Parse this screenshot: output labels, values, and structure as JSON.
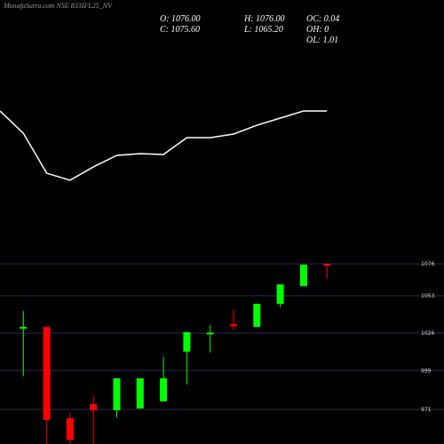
{
  "chart_data": [
    {
      "type": "line",
      "ylim": [
        0,
        100
      ],
      "color": "#ffffff",
      "values": [
        79.2,
        58.3,
        20.8,
        14.2,
        26.7,
        37.5,
        39.2,
        38.3,
        54.2,
        54.2,
        57.5,
        65.8,
        72.5,
        79.2,
        79.2
      ]
    },
    {
      "type": "candlestick",
      "title": "MunafaSutra.com NSE 833IFL25_NV",
      "annotations": [
        "O: 1076.00",
        "H: 1076.00",
        "OC: 0.04",
        "C: 1075.60",
        "L: 1065.20",
        "OH: 0",
        "OL: 1.01"
      ],
      "up_color": "#00ff00",
      "down_color": "#ff0000",
      "grid": true,
      "ylim": [
        946,
        1087
      ],
      "yticks": [
        1076,
        1053,
        1026,
        999,
        971
      ],
      "open": [
        1030.5,
        1030.5,
        964.6,
        974.8,
        970.3,
        971.6,
        976.8,
        1012.7,
        1026,
        1032.4,
        1030.5,
        1047.2,
        1059.9,
        1076
      ],
      "high": [
        1042,
        1030.5,
        968.5,
        981.2,
        993.4,
        993.4,
        1009,
        1026.7,
        1032,
        1043,
        1047.2,
        1061.2,
        1075.4,
        1076
      ],
      "low": [
        995,
        946,
        946,
        946,
        965,
        971.6,
        976.8,
        989,
        1012,
        1028,
        1030.5,
        1044.7,
        1059.9,
        1065.2
      ],
      "close": [
        1030.5,
        963.3,
        949,
        970.3,
        993.4,
        993.4,
        993.4,
        1026.7,
        1026.4,
        1031,
        1047.2,
        1061.2,
        1075.4,
        1075.6
      ]
    }
  ]
}
